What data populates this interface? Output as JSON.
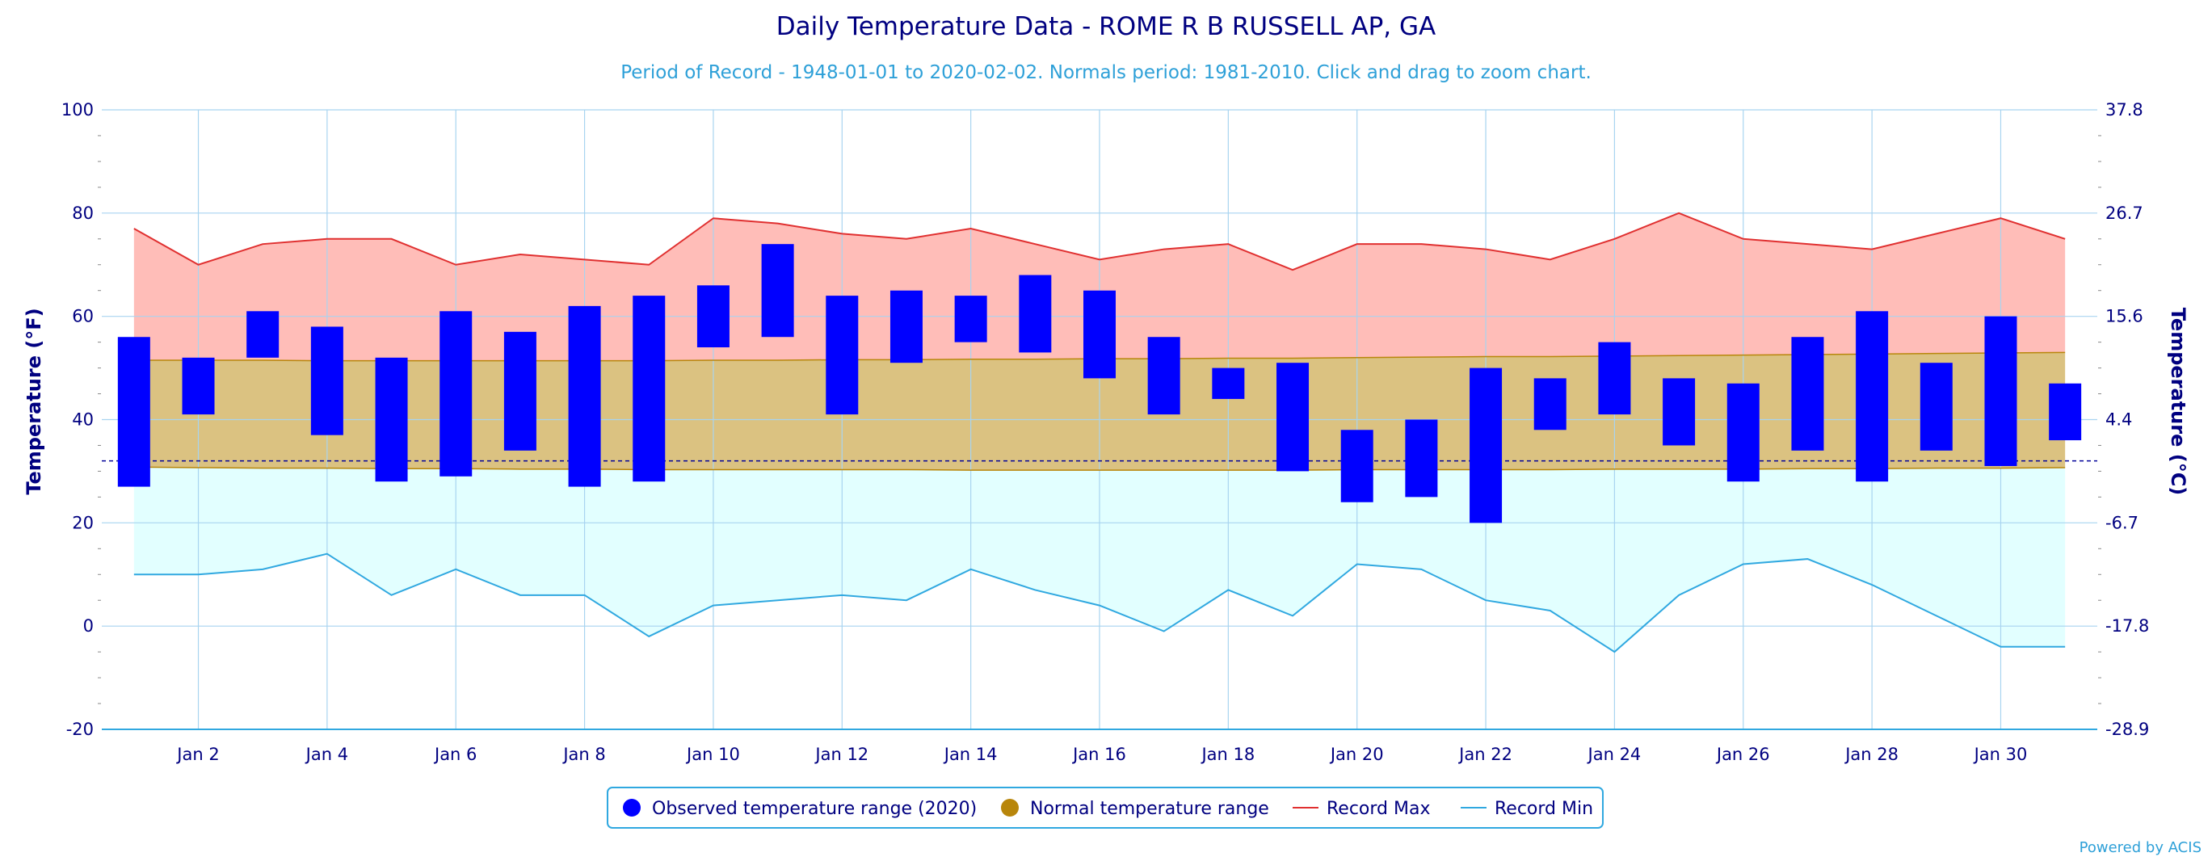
{
  "chart_data": {
    "type": "bar",
    "title": "Daily Temperature Data - ROME R B RUSSELL AP, GA",
    "subtitle": "Period of Record - 1948-01-01 to 2020-02-02. Normals period: 1981-2010. Click and drag to zoom chart.",
    "ylabel_left": "Temperature (°F)",
    "ylabel_right": "Temperature (°C)",
    "ylim": [
      -20,
      100
    ],
    "yticks_left": [
      "100",
      "80",
      "60",
      "40",
      "20",
      "0",
      "-20"
    ],
    "yticks_right": [
      "37.8",
      "26.7",
      "15.6",
      "4.4",
      "-6.7",
      "-17.8",
      "-28.9"
    ],
    "xlim": [
      1,
      31
    ],
    "xticks": [
      {
        "day": 2,
        "label": "Jan 2"
      },
      {
        "day": 4,
        "label": "Jan 4"
      },
      {
        "day": 6,
        "label": "Jan 6"
      },
      {
        "day": 8,
        "label": "Jan 8"
      },
      {
        "day": 10,
        "label": "Jan 10"
      },
      {
        "day": 12,
        "label": "Jan 12"
      },
      {
        "day": 14,
        "label": "Jan 14"
      },
      {
        "day": 16,
        "label": "Jan 16"
      },
      {
        "day": 18,
        "label": "Jan 18"
      },
      {
        "day": 20,
        "label": "Jan 20"
      },
      {
        "day": 22,
        "label": "Jan 22"
      },
      {
        "day": 24,
        "label": "Jan 24"
      },
      {
        "day": 26,
        "label": "Jan 26"
      },
      {
        "day": 28,
        "label": "Jan 28"
      },
      {
        "day": 30,
        "label": "Jan 30"
      }
    ],
    "freezing_line_f": 32,
    "days": [
      1,
      2,
      3,
      4,
      5,
      6,
      7,
      8,
      9,
      10,
      11,
      12,
      13,
      14,
      15,
      16,
      17,
      18,
      19,
      20,
      21,
      22,
      23,
      24,
      25,
      26,
      27,
      28,
      29,
      30,
      31
    ],
    "observed": {
      "name": "Observed temperature range (2020)",
      "low": [
        27,
        41,
        52,
        37,
        28,
        29,
        34,
        27,
        28,
        54,
        56,
        41,
        51,
        55,
        53,
        48,
        41,
        44,
        30,
        24,
        25,
        20,
        38,
        41,
        35,
        28,
        34,
        28,
        34,
        31,
        36
      ],
      "high": [
        56,
        52,
        61,
        58,
        52,
        61,
        57,
        62,
        64,
        66,
        74,
        64,
        65,
        64,
        68,
        65,
        56,
        50,
        51,
        38,
        40,
        50,
        48,
        55,
        48,
        47,
        56,
        61,
        51,
        60,
        47
      ]
    },
    "normal": {
      "name": "Normal temperature range",
      "low": [
        30.8,
        30.7,
        30.6,
        30.6,
        30.5,
        30.5,
        30.4,
        30.4,
        30.3,
        30.3,
        30.3,
        30.3,
        30.3,
        30.2,
        30.2,
        30.2,
        30.2,
        30.2,
        30.2,
        30.3,
        30.3,
        30.3,
        30.3,
        30.4,
        30.4,
        30.4,
        30.5,
        30.5,
        30.6,
        30.6,
        30.7
      ],
      "high": [
        51.5,
        51.5,
        51.5,
        51.4,
        51.4,
        51.4,
        51.4,
        51.4,
        51.4,
        51.5,
        51.5,
        51.6,
        51.6,
        51.7,
        51.7,
        51.8,
        51.8,
        51.9,
        51.9,
        52.0,
        52.1,
        52.2,
        52.2,
        52.3,
        52.4,
        52.5,
        52.6,
        52.7,
        52.8,
        52.9,
        53.0
      ]
    },
    "record_max": {
      "name": "Record Max",
      "values": [
        77,
        70,
        74,
        75,
        75,
        70,
        72,
        71,
        70,
        79,
        78,
        76,
        75,
        77,
        74,
        71,
        73,
        74,
        69,
        74,
        74,
        73,
        71,
        75,
        80,
        75,
        74,
        73,
        76,
        79,
        75
      ]
    },
    "record_min": {
      "name": "Record Min",
      "values": [
        10,
        10,
        11,
        14,
        6,
        11,
        6,
        6,
        -2,
        4,
        5,
        6,
        5,
        11,
        7,
        4,
        -1,
        7,
        2,
        12,
        11,
        5,
        3,
        -5,
        6,
        12,
        13,
        8,
        2,
        -4,
        -4
      ]
    },
    "colors": {
      "observed": "#0000ff",
      "normal": "#b8860b",
      "normal_fill": "#dbc281",
      "record_max": "#e03030",
      "record_max_fill": "#ffbdb8",
      "record_min": "#30a8e0",
      "record_min_fill": "#e2ffff",
      "grid": "#a8d4f0",
      "freezing_line": "#000099",
      "axis_text": "#000080"
    },
    "legend_position": "bottom-center",
    "credit": "Powered by ACIS"
  }
}
